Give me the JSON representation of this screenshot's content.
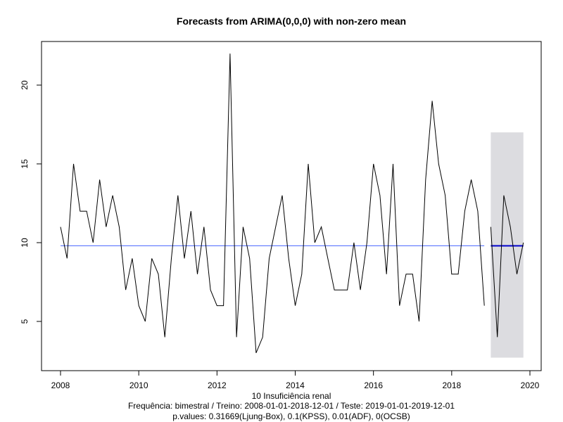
{
  "chart_data": {
    "type": "line",
    "title": "Forecasts from ARIMA(0,0,0) with non-zero mean",
    "xlabel": "10 Insuficiência renal",
    "ylabel": "",
    "xlim": [
      2008,
      2020
    ],
    "ylim": [
      2.7,
      22.9
    ],
    "x_ticks": [
      "2008",
      "2010",
      "2012",
      "2014",
      "2016",
      "2018",
      "2020"
    ],
    "x_tick_values": [
      2008,
      2010,
      2012,
      2014,
      2016,
      2018,
      2020
    ],
    "y_ticks": [
      "5",
      "10",
      "15",
      "20"
    ],
    "y_tick_values": [
      5,
      10,
      15,
      20
    ],
    "footnotes": [
      "Frequência: bimestral / Treino: 2008-01-01-2018-12-01 / Teste: 2019-01-01-2019-12-01",
      "p.values: 0.31669(Ljung-Box), 0.1(KPSS), 0.01(ADF), 0(OCSB)"
    ],
    "training": {
      "name": "Treino",
      "start": 2008,
      "step": 0.16667,
      "values": [
        11,
        9,
        15,
        12,
        12,
        10,
        14,
        11,
        13,
        11,
        7,
        9,
        6,
        5,
        9,
        8,
        4,
        9,
        13,
        9,
        12,
        8,
        11,
        7,
        6,
        6,
        22,
        4,
        11,
        9,
        3,
        4,
        9,
        11,
        13,
        9,
        6,
        8,
        15,
        10,
        11,
        9,
        7,
        7,
        7,
        10,
        7,
        10,
        15,
        13,
        8,
        15,
        6,
        8,
        8,
        5,
        14,
        19,
        15,
        13,
        8,
        8,
        12,
        14,
        12,
        6
      ]
    },
    "test": {
      "name": "Teste",
      "start": 2019,
      "step": 0.16667,
      "values": [
        11,
        4,
        13,
        11,
        8,
        10
      ]
    },
    "fitted_mean": {
      "value": 9.8,
      "from": 2008,
      "to": 2018.833
    },
    "forecast": {
      "mean": 9.8,
      "from": 2019,
      "to": 2019.833,
      "interval_low": 2.7,
      "interval_high": 17.0
    },
    "colors": {
      "line": "#000000",
      "mean": "#4f6cff",
      "forecast": "#0000cc",
      "interval": "#dcdce0",
      "axis": "#000000"
    }
  }
}
